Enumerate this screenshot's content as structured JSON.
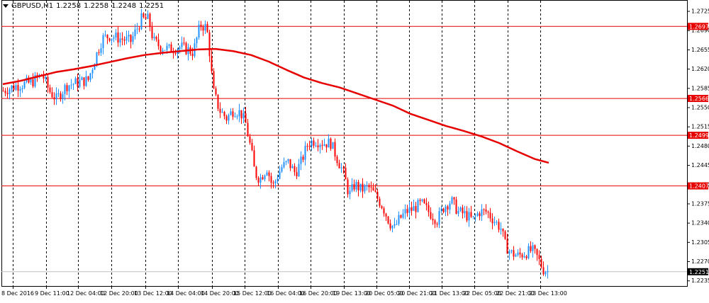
{
  "symbol_info": {
    "symbol": "GBPUSD,H1",
    "open": "1.2258",
    "high": "1.2258",
    "low": "1.2248",
    "close": "1.2251"
  },
  "colors": {
    "background": "#ffffff",
    "bull_candle": "#1e90ff",
    "bear_candle": "#ff0000",
    "moving_average": "#e60000",
    "level_line": "#e60000",
    "current_price_line": "#c0c0c0",
    "grid": "#000000"
  },
  "chart_data": {
    "type": "candlestick",
    "ylim": [
      1.2225,
      1.2745
    ],
    "y_ticks": [
      "1.2725",
      "1.2690",
      "1.2655",
      "1.2620",
      "1.2585",
      "1.2550",
      "1.2515",
      "1.2480",
      "1.2445",
      "1.2410",
      "1.2375",
      "1.2340",
      "1.2305",
      "1.2270",
      "1.2235"
    ],
    "x_labels": [
      "8 Dec 2016",
      "9 Dec 11:00",
      "12 Dec 04:00",
      "12 Dec 20:00",
      "13 Dec 12:00",
      "14 Dec 04:00",
      "14 Dec 20:00",
      "15 Dec 12:00",
      "16 Dec 04:00",
      "16 Dec 20:00",
      "19 Dec 13:00",
      "20 Dec 05:00",
      "20 Dec 21:00",
      "21 Dec 13:00",
      "22 Dec 05:00",
      "22 Dec 21:00",
      "23 Dec 13:00"
    ],
    "grid": true,
    "price_levels": [
      {
        "label": "1.2697",
        "value": 1.2697
      },
      {
        "label": "1.2566",
        "value": 1.2566
      },
      {
        "label": "1.2499",
        "value": 1.2499
      },
      {
        "label": "1.2407",
        "value": 1.2407
      }
    ],
    "current_price": {
      "label": "1.2251",
      "value": 1.2251
    },
    "moving_average": {
      "x": [
        0,
        25,
        50,
        75,
        100,
        125,
        150,
        175,
        200,
        225,
        250,
        275,
        300,
        325,
        350,
        375,
        400,
        425,
        450,
        475,
        500,
        525,
        550,
        575,
        600,
        625,
        650,
        675,
        700,
        725,
        750,
        770
      ],
      "values": [
        1.2592,
        1.2598,
        1.2606,
        1.2614,
        1.2619,
        1.2625,
        1.2632,
        1.2639,
        1.2645,
        1.2649,
        1.2652,
        1.2655,
        1.2656,
        1.2652,
        1.2645,
        1.2633,
        1.2618,
        1.2604,
        1.2594,
        1.2586,
        1.2575,
        1.2564,
        1.2553,
        1.2538,
        1.2527,
        1.2516,
        1.2507,
        1.2497,
        1.2485,
        1.247,
        1.2456,
        1.2449
      ]
    },
    "candle_anchors": {
      "x": [
        0,
        20,
        40,
        55,
        65,
        75,
        90,
        105,
        120,
        130,
        140,
        150,
        165,
        180,
        195,
        205,
        212,
        222,
        235,
        250,
        268,
        278,
        287,
        292,
        296,
        305,
        315,
        325,
        335,
        342,
        350,
        355,
        362,
        372,
        380,
        392,
        402,
        412,
        420,
        430,
        440,
        452,
        462,
        470,
        480,
        488,
        496,
        505,
        515,
        525,
        535,
        545,
        552,
        558,
        568,
        578,
        590,
        600,
        612,
        622,
        632,
        642,
        652,
        662,
        672,
        682,
        692,
        702,
        708,
        716,
        726,
        736,
        746,
        752,
        758,
        762,
        770
      ],
      "values": [
        1.258,
        1.259,
        1.2595,
        1.261,
        1.258,
        1.2565,
        1.259,
        1.2595,
        1.26,
        1.264,
        1.2675,
        1.268,
        1.2675,
        1.267,
        1.271,
        1.271,
        1.267,
        1.266,
        1.2655,
        1.266,
        1.265,
        1.27,
        1.2695,
        1.264,
        1.258,
        1.2545,
        1.253,
        1.2545,
        1.254,
        1.252,
        1.247,
        1.243,
        1.242,
        1.244,
        1.2405,
        1.244,
        1.245,
        1.243,
        1.245,
        1.2485,
        1.249,
        1.2485,
        1.2485,
        1.246,
        1.243,
        1.239,
        1.241,
        1.24,
        1.2405,
        1.239,
        1.237,
        1.234,
        1.233,
        1.2345,
        1.236,
        1.2365,
        1.2375,
        1.236,
        1.2345,
        1.237,
        1.238,
        1.236,
        1.2355,
        1.2345,
        1.236,
        1.236,
        1.2345,
        1.233,
        1.23,
        1.2285,
        1.228,
        1.2285,
        1.229,
        1.228,
        1.2265,
        1.2255,
        1.2251
      ]
    }
  }
}
